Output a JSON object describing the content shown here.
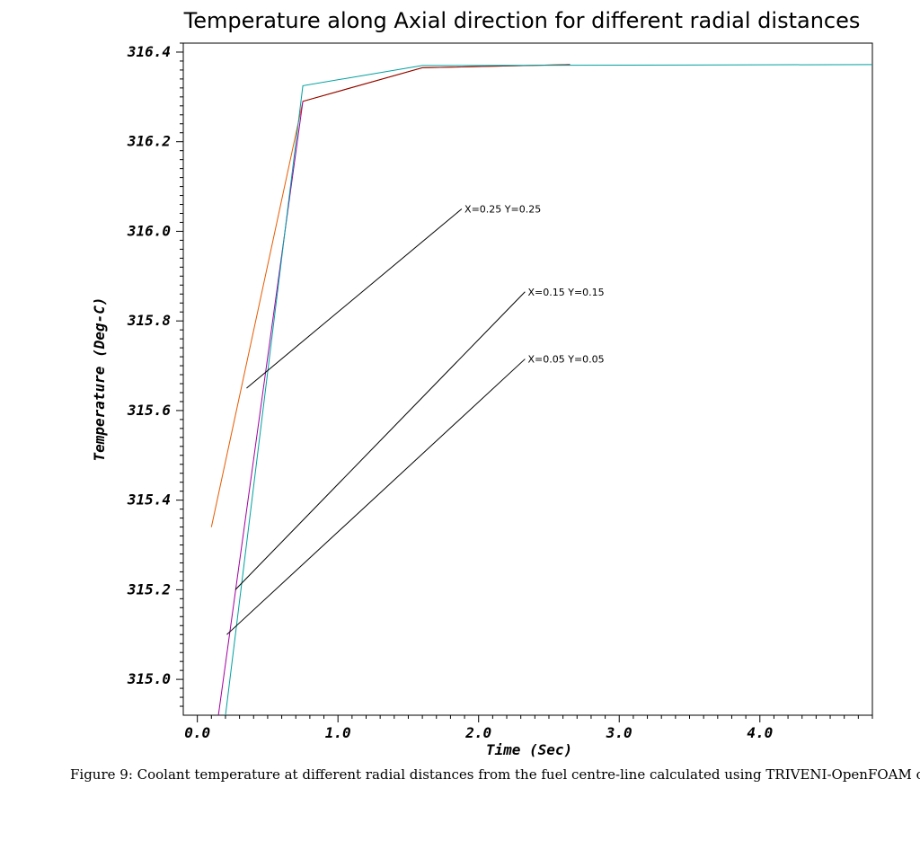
{
  "caption": "Figure 9: Coolant temperature at different radial distances from the fuel centre-line calculated using TRIVENI-OpenFOAM code.",
  "chart_data": {
    "type": "line",
    "title": "Temperature along Axial direction for different radial distances",
    "xlabel": "Time (Sec)",
    "ylabel": "Temperature (Deg-C)",
    "xlim": [
      -0.1,
      4.8
    ],
    "ylim": [
      314.92,
      316.42
    ],
    "x_ticks": [
      0.0,
      1.0,
      2.0,
      3.0,
      4.0
    ],
    "x_tick_labels": [
      "0.0",
      "1.0",
      "2.0",
      "3.0",
      "4.0"
    ],
    "y_ticks": [
      315.0,
      315.2,
      315.4,
      315.6,
      315.8,
      316.0,
      316.2,
      316.4
    ],
    "y_tick_labels": [
      "315.0",
      "315.2",
      "315.4",
      "315.6",
      "315.8",
      "316.0",
      "316.2",
      "316.4"
    ],
    "grid": false,
    "legend": "none",
    "series": [
      {
        "color": "#e85a00",
        "x": [
          0.1,
          0.75,
          1.6,
          2.65
        ],
        "y": [
          315.34,
          316.29,
          316.365,
          316.372
        ]
      },
      {
        "color": "#8b0000",
        "x": [
          0.75,
          1.6,
          2.65
        ],
        "y": [
          316.29,
          316.365,
          316.372
        ]
      },
      {
        "color": "#a000a0",
        "x": [
          0.15,
          0.75
        ],
        "y": [
          314.92,
          316.29
        ]
      },
      {
        "color": "#00a0a0",
        "x": [
          0.2,
          0.75,
          1.6,
          4.8
        ],
        "y": [
          314.92,
          316.325,
          316.37,
          316.372
        ]
      }
    ],
    "annotations": [
      {
        "text": "X=0.25 Y=0.25",
        "label_at": [
          1.9,
          316.05
        ],
        "line_from": [
          1.88,
          316.05
        ],
        "line_to": [
          0.35,
          315.65
        ]
      },
      {
        "text": "X=0.15 Y=0.15",
        "label_at": [
          2.35,
          315.865
        ],
        "line_from": [
          2.33,
          315.865
        ],
        "line_to": [
          0.27,
          315.2
        ]
      },
      {
        "text": "X=0.05 Y=0.05",
        "label_at": [
          2.35,
          315.715
        ],
        "line_from": [
          2.33,
          315.715
        ],
        "line_to": [
          0.21,
          315.1
        ]
      }
    ]
  }
}
